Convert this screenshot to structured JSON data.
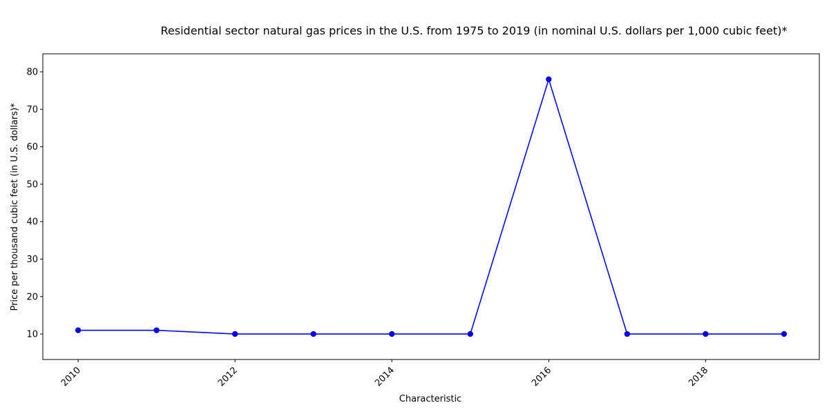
{
  "chart_data": {
    "type": "line",
    "title": "Residential sector natural gas prices in the U.S. from 1975 to 2019 (in nominal U.S. dollars per 1,000 cubic feet)*",
    "xlabel": "Characteristic",
    "ylabel": "Price per thousand cubic feet (in U.S. dollars)*",
    "x": [
      2010,
      2011,
      2012,
      2013,
      2014,
      2015,
      2016,
      2017,
      2018,
      2019
    ],
    "series": [
      {
        "values": [
          11,
          11,
          10,
          10,
          10,
          10,
          78,
          10,
          10,
          10
        ]
      }
    ],
    "xlim": [
      2009.55,
      2019.45
    ],
    "ylim": [
      3.2,
      84.8
    ],
    "xticks": [
      2010,
      2012,
      2014,
      2016,
      2018
    ],
    "yticks": [
      10,
      20,
      30,
      40,
      50,
      60,
      70,
      80
    ],
    "grid": false,
    "line_color": "#0000ff",
    "marker_color": "#0000ff"
  }
}
